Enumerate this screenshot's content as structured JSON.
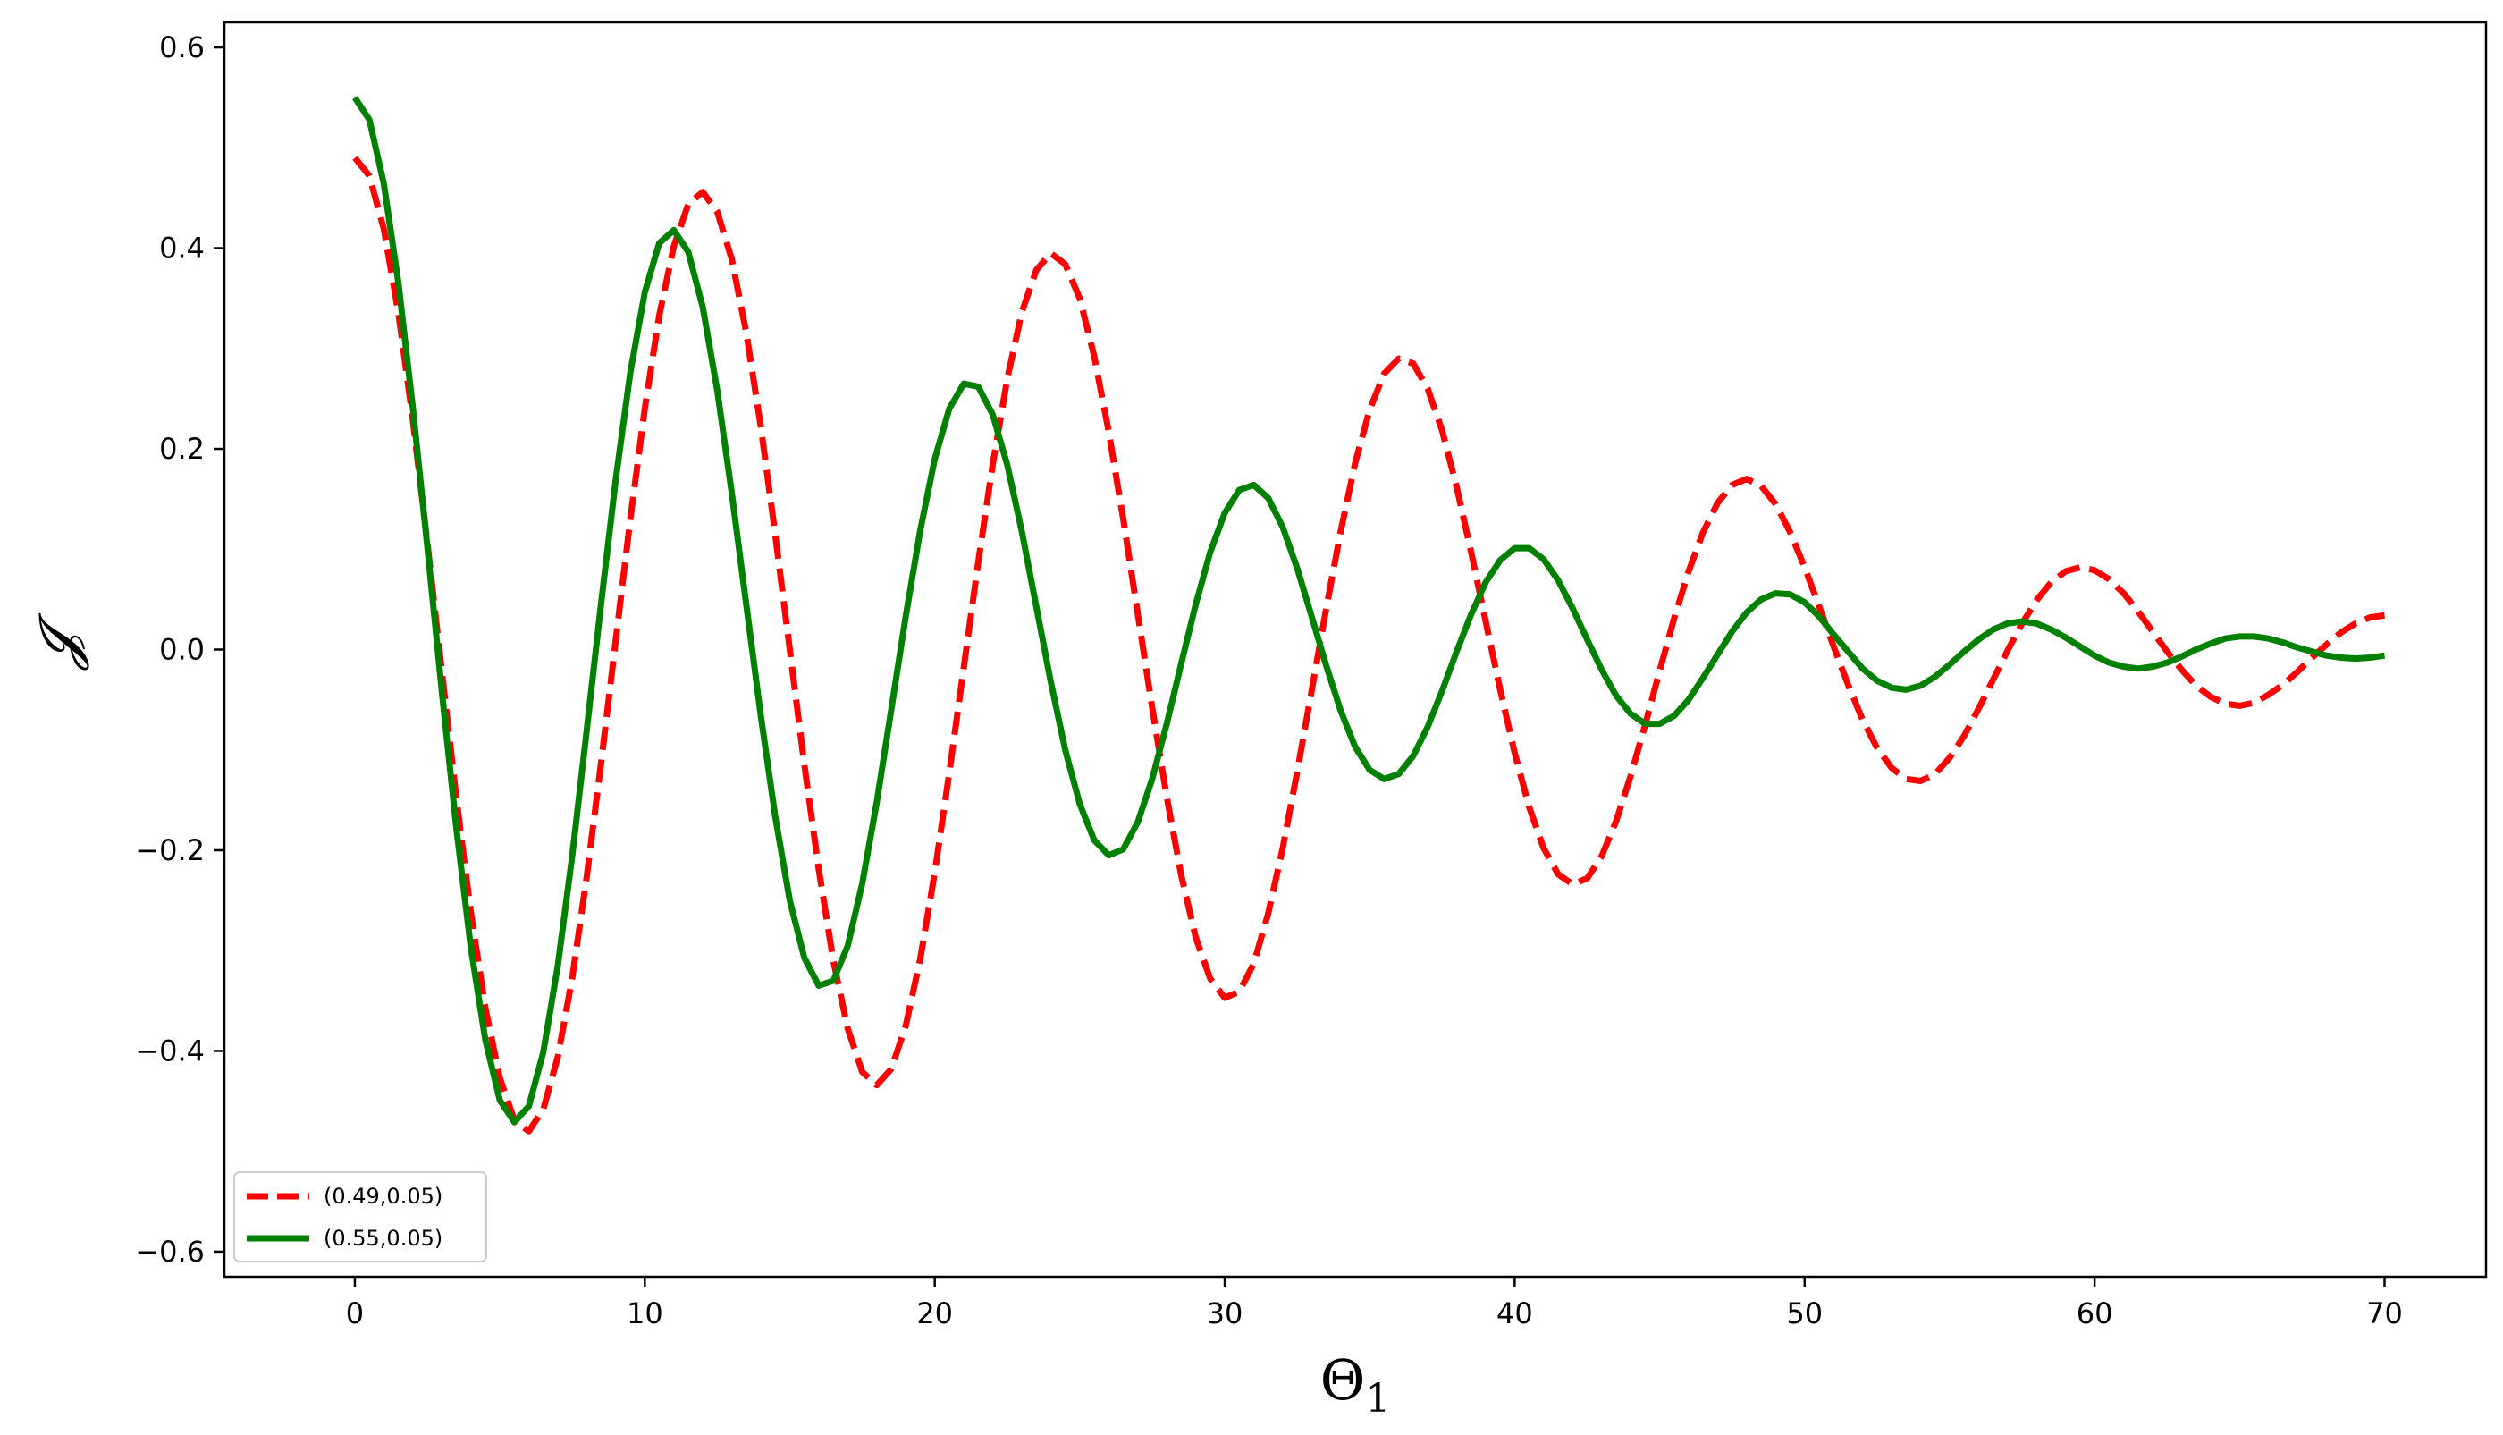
{
  "chart_data": {
    "type": "line",
    "title": "",
    "xlabel": "Θ",
    "xlabel_sub": "1",
    "ylabel": "𝓙",
    "xlim": [
      -4.5,
      73.5
    ],
    "ylim": [
      -0.625,
      0.625
    ],
    "xticks": [
      0,
      10,
      20,
      30,
      40,
      50,
      60,
      70
    ],
    "xtick_labels": [
      "0",
      "10",
      "20",
      "30",
      "40",
      "50",
      "60",
      "70"
    ],
    "yticks": [
      -0.6,
      -0.4,
      -0.2,
      0.0,
      0.2,
      0.4,
      0.6
    ],
    "ytick_labels": [
      "−0.6",
      "−0.4",
      "−0.2",
      "0.0",
      "0.2",
      "0.4",
      "0.6"
    ],
    "grid": false,
    "legend_position": "lower-left",
    "series": [
      {
        "name": "(0.49,0.05)",
        "color": "#ff0000",
        "line_style": "dashed",
        "x": [
          0.0,
          0.5,
          1.0,
          1.5,
          2.0,
          2.5,
          3.0,
          3.5,
          4.0,
          4.5,
          5.0,
          5.5,
          6.0,
          6.5,
          7.0,
          7.5,
          8.0,
          8.5,
          9.0,
          9.5,
          10.0,
          10.5,
          11.0,
          11.5,
          12.0,
          12.5,
          13.0,
          13.5,
          14.0,
          14.5,
          15.0,
          15.5,
          16.0,
          16.5,
          17.0,
          17.5,
          18.0,
          18.5,
          19.0,
          19.5,
          20.0,
          20.5,
          21.0,
          21.5,
          22.0,
          22.5,
          23.0,
          23.5,
          24.0,
          24.5,
          25.0,
          25.5,
          26.0,
          26.5,
          27.0,
          27.5,
          28.0,
          28.5,
          29.0,
          29.5,
          30.0,
          30.5,
          31.0,
          31.5,
          32.0,
          32.5,
          33.0,
          33.5,
          34.0,
          34.5,
          35.0,
          35.5,
          36.0,
          36.5,
          37.0,
          37.5,
          38.0,
          38.5,
          39.0,
          39.5,
          40.0,
          40.5,
          41.0,
          41.5,
          42.0,
          42.5,
          43.0,
          43.5,
          44.0,
          44.5,
          45.0,
          45.5,
          46.0,
          46.5,
          47.0,
          47.5,
          48.0,
          48.5,
          49.0,
          49.5,
          50.0,
          50.5,
          51.0,
          51.5,
          52.0,
          52.5,
          53.0,
          53.5,
          54.0,
          54.5,
          55.0,
          55.5,
          56.0,
          56.5,
          57.0,
          57.5,
          58.0,
          58.5,
          59.0,
          59.5,
          60.0,
          60.5,
          61.0,
          61.5,
          62.0,
          62.5,
          63.0,
          63.5,
          64.0,
          64.5,
          65.0,
          65.5,
          66.0,
          66.5,
          67.0,
          67.5,
          68.0,
          68.5,
          69.0,
          69.5,
          70.0
        ],
        "y": [
          0.49,
          0.472,
          0.419,
          0.336,
          0.229,
          0.106,
          -0.022,
          -0.148,
          -0.262,
          -0.357,
          -0.427,
          -0.469,
          -0.48,
          -0.458,
          -0.406,
          -0.327,
          -0.226,
          -0.111,
          0.01,
          0.13,
          0.24,
          0.333,
          0.402,
          0.444,
          0.456,
          0.436,
          0.389,
          0.316,
          0.222,
          0.114,
          0.0,
          -0.114,
          -0.219,
          -0.31,
          -0.378,
          -0.421,
          -0.434,
          -0.418,
          -0.375,
          -0.308,
          -0.222,
          -0.123,
          -0.018,
          0.087,
          0.185,
          0.27,
          0.336,
          0.378,
          0.395,
          0.384,
          0.35,
          0.292,
          0.217,
          0.13,
          0.036,
          -0.058,
          -0.147,
          -0.225,
          -0.287,
          -0.328,
          -0.347,
          -0.341,
          -0.313,
          -0.263,
          -0.198,
          -0.122,
          -0.041,
          0.041,
          0.118,
          0.186,
          0.239,
          0.275,
          0.29,
          0.285,
          0.26,
          0.218,
          0.162,
          0.097,
          0.028,
          -0.04,
          -0.103,
          -0.157,
          -0.198,
          -0.224,
          -0.234,
          -0.228,
          -0.206,
          -0.171,
          -0.126,
          -0.075,
          -0.021,
          0.031,
          0.078,
          0.117,
          0.146,
          0.164,
          0.17,
          0.163,
          0.145,
          0.117,
          0.082,
          0.043,
          0.003,
          -0.035,
          -0.07,
          -0.098,
          -0.118,
          -0.129,
          -0.131,
          -0.124,
          -0.108,
          -0.086,
          -0.059,
          -0.03,
          -0.001,
          0.026,
          0.049,
          0.067,
          0.078,
          0.082,
          0.079,
          0.07,
          0.056,
          0.038,
          0.018,
          -0.002,
          -0.02,
          -0.036,
          -0.047,
          -0.054,
          -0.056,
          -0.053,
          -0.045,
          -0.035,
          -0.022,
          -0.008,
          0.005,
          0.017,
          0.026,
          0.032,
          0.034
        ]
      },
      {
        "name": "(0.55,0.05)",
        "color": "#008000",
        "line_style": "solid",
        "x": [
          0.0,
          0.5,
          1.0,
          1.5,
          2.0,
          2.5,
          3.0,
          3.5,
          4.0,
          4.5,
          5.0,
          5.5,
          6.0,
          6.5,
          7.0,
          7.5,
          8.0,
          8.5,
          9.0,
          9.5,
          10.0,
          10.5,
          11.0,
          11.5,
          12.0,
          12.5,
          13.0,
          13.5,
          14.0,
          14.5,
          15.0,
          15.5,
          16.0,
          16.5,
          17.0,
          17.5,
          18.0,
          18.5,
          19.0,
          19.5,
          20.0,
          20.5,
          21.0,
          21.5,
          22.0,
          22.5,
          23.0,
          23.5,
          24.0,
          24.5,
          25.0,
          25.5,
          26.0,
          26.5,
          27.0,
          27.5,
          28.0,
          28.5,
          29.0,
          29.5,
          30.0,
          30.5,
          31.0,
          31.5,
          32.0,
          32.5,
          33.0,
          33.5,
          34.0,
          34.5,
          35.0,
          35.5,
          36.0,
          36.5,
          37.0,
          37.5,
          38.0,
          38.5,
          39.0,
          39.5,
          40.0,
          40.5,
          41.0,
          41.5,
          42.0,
          42.5,
          43.0,
          43.5,
          44.0,
          44.5,
          45.0,
          45.5,
          46.0,
          46.5,
          47.0,
          47.5,
          48.0,
          48.5,
          49.0,
          49.5,
          50.0,
          50.5,
          51.0,
          51.5,
          52.0,
          52.5,
          53.0,
          53.5,
          54.0,
          54.5,
          55.0,
          55.5,
          56.0,
          56.5,
          57.0,
          57.5,
          58.0,
          58.5,
          59.0,
          59.5,
          60.0,
          60.5,
          61.0,
          61.5,
          62.0,
          62.5,
          63.0,
          63.5,
          64.0,
          64.5,
          65.0,
          65.5,
          66.0,
          66.5,
          67.0,
          67.5,
          68.0,
          68.5,
          69.0,
          69.5,
          70.0
        ],
        "y": [
          0.55,
          0.528,
          0.464,
          0.366,
          0.241,
          0.102,
          -0.042,
          -0.178,
          -0.297,
          -0.389,
          -0.449,
          -0.471,
          -0.455,
          -0.401,
          -0.315,
          -0.205,
          -0.08,
          0.048,
          0.17,
          0.276,
          0.356,
          0.405,
          0.418,
          0.396,
          0.341,
          0.258,
          0.156,
          0.045,
          -0.066,
          -0.167,
          -0.25,
          -0.307,
          -0.335,
          -0.33,
          -0.295,
          -0.233,
          -0.152,
          -0.06,
          0.033,
          0.119,
          0.19,
          0.24,
          0.265,
          0.262,
          0.234,
          0.184,
          0.118,
          0.043,
          -0.032,
          -0.1,
          -0.154,
          -0.19,
          -0.205,
          -0.199,
          -0.172,
          -0.129,
          -0.074,
          -0.014,
          0.045,
          0.097,
          0.136,
          0.159,
          0.164,
          0.151,
          0.122,
          0.081,
          0.033,
          -0.016,
          -0.061,
          -0.097,
          -0.12,
          -0.129,
          -0.124,
          -0.106,
          -0.077,
          -0.041,
          -0.002,
          0.035,
          0.067,
          0.089,
          0.101,
          0.101,
          0.09,
          0.069,
          0.041,
          0.01,
          -0.02,
          -0.046,
          -0.064,
          -0.074,
          -0.074,
          -0.066,
          -0.05,
          -0.028,
          -0.005,
          0.018,
          0.037,
          0.05,
          0.056,
          0.055,
          0.047,
          0.033,
          0.015,
          -0.002,
          -0.019,
          -0.031,
          -0.038,
          -0.04,
          -0.036,
          -0.027,
          -0.015,
          -0.002,
          0.01,
          0.02,
          0.026,
          0.028,
          0.026,
          0.02,
          0.012,
          0.003,
          -0.006,
          -0.013,
          -0.017,
          -0.019,
          -0.017,
          -0.013,
          -0.007,
          0.0,
          0.006,
          0.011,
          0.013,
          0.013,
          0.011,
          0.007,
          0.002,
          -0.002,
          -0.006,
          -0.008,
          -0.009,
          -0.008,
          -0.006
        ]
      }
    ]
  }
}
